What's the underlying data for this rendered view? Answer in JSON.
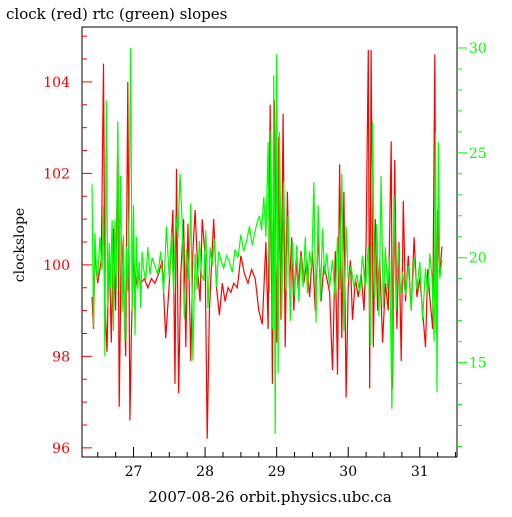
{
  "chart_data": {
    "type": "line",
    "title": "clock (red) rtc (green) slopes",
    "ylabel": "clockslope",
    "caption": "2007-08-26 orbit.physics.ubc.ca",
    "x_range": [
      26.28,
      31.52
    ],
    "x_ticks": [
      27,
      28,
      29,
      30,
      31
    ],
    "x_tick_labels": [
      "27",
      "28",
      "29",
      "30",
      "31"
    ],
    "y_left": {
      "range": [
        95.8,
        105.2
      ],
      "ticks": [
        96,
        98,
        100,
        102,
        104
      ],
      "color": "#ff0000"
    },
    "y_right": {
      "range": [
        10.5,
        31.0
      ],
      "ticks": [
        15,
        20,
        25,
        30
      ],
      "color": "#00ff00"
    },
    "colors": {
      "clock": "#ff0000",
      "rtc": "#00ff00",
      "frame": "#000000",
      "background": "#ffffff"
    },
    "series": [
      {
        "axis": "left",
        "color": "#ff0000",
        "points": [
          [
            26.42,
            99.3
          ],
          [
            26.44,
            98.6
          ],
          [
            26.46,
            100.3
          ],
          [
            26.48,
            99.9
          ],
          [
            26.5,
            99.6
          ],
          [
            26.52,
            99.8
          ],
          [
            26.55,
            100.1
          ],
          [
            26.58,
            104.4
          ],
          [
            26.6,
            99.2
          ],
          [
            26.63,
            98.1
          ],
          [
            26.66,
            100.4
          ],
          [
            26.69,
            98.3
          ],
          [
            26.72,
            100.8
          ],
          [
            26.75,
            99.0
          ],
          [
            26.78,
            102.9
          ],
          [
            26.8,
            96.9
          ],
          [
            26.83,
            100.6
          ],
          [
            26.86,
            99.7
          ],
          [
            26.89,
            98.0
          ],
          [
            26.92,
            104.0
          ],
          [
            26.95,
            96.6
          ],
          [
            26.97,
            98.5
          ],
          [
            27.0,
            100.2
          ],
          [
            27.03,
            99.5
          ],
          [
            27.06,
            99.8
          ],
          [
            27.1,
            99.6
          ],
          [
            27.15,
            99.7
          ],
          [
            27.2,
            99.5
          ],
          [
            27.25,
            99.7
          ],
          [
            27.3,
            99.6
          ],
          [
            27.35,
            99.8
          ],
          [
            27.4,
            100.1
          ],
          [
            27.45,
            98.4
          ],
          [
            27.5,
            99.6
          ],
          [
            27.55,
            101.2
          ],
          [
            27.58,
            97.4
          ],
          [
            27.6,
            102.1
          ],
          [
            27.63,
            97.2
          ],
          [
            27.66,
            99.8
          ],
          [
            27.7,
            101.0
          ],
          [
            27.73,
            98.2
          ],
          [
            27.76,
            100.9
          ],
          [
            27.8,
            97.9
          ],
          [
            27.83,
            100.3
          ],
          [
            27.86,
            101.2
          ],
          [
            27.9,
            99.8
          ],
          [
            27.93,
            99.2
          ],
          [
            27.96,
            101.0
          ],
          [
            28.0,
            100.2
          ],
          [
            28.03,
            96.2
          ],
          [
            28.06,
            99.0
          ],
          [
            28.09,
            100.0
          ],
          [
            28.12,
            101.0
          ],
          [
            28.16,
            99.5
          ],
          [
            28.2,
            98.9
          ],
          [
            28.24,
            99.6
          ],
          [
            28.28,
            99.2
          ],
          [
            28.32,
            99.5
          ],
          [
            28.36,
            99.4
          ],
          [
            28.4,
            99.6
          ],
          [
            28.45,
            99.5
          ],
          [
            28.5,
            100.2
          ],
          [
            28.55,
            99.8
          ],
          [
            28.6,
            99.6
          ],
          [
            28.65,
            99.9
          ],
          [
            28.7,
            99.7
          ],
          [
            28.75,
            99.0
          ],
          [
            28.8,
            98.7
          ],
          [
            28.85,
            100.5
          ],
          [
            28.88,
            98.6
          ],
          [
            28.91,
            103.5
          ],
          [
            28.94,
            97.4
          ],
          [
            28.97,
            103.6
          ],
          [
            29.0,
            98.3
          ],
          [
            29.03,
            102.8
          ],
          [
            29.06,
            98.8
          ],
          [
            29.09,
            103.3
          ],
          [
            29.12,
            98.2
          ],
          [
            29.15,
            101.6
          ],
          [
            29.18,
            99.5
          ],
          [
            29.21,
            100.6
          ],
          [
            29.24,
            99.0
          ],
          [
            29.27,
            100.1
          ],
          [
            29.3,
            99.5
          ],
          [
            29.34,
            100.3
          ],
          [
            29.38,
            99.6
          ],
          [
            29.42,
            100.1
          ],
          [
            29.46,
            99.3
          ],
          [
            29.5,
            100.3
          ],
          [
            29.54,
            99.0
          ],
          [
            29.58,
            100.6
          ],
          [
            29.62,
            99.2
          ],
          [
            29.66,
            100.0
          ],
          [
            29.7,
            99.7
          ],
          [
            29.74,
            99.4
          ],
          [
            29.78,
            97.7
          ],
          [
            29.82,
            100.3
          ],
          [
            29.85,
            97.6
          ],
          [
            29.88,
            102.2
          ],
          [
            29.91,
            98.4
          ],
          [
            29.94,
            101.6
          ],
          [
            29.97,
            97.1
          ],
          [
            30.0,
            99.5
          ],
          [
            30.03,
            100.1
          ],
          [
            30.06,
            98.8
          ],
          [
            30.1,
            99.7
          ],
          [
            30.14,
            99.3
          ],
          [
            30.18,
            99.8
          ],
          [
            30.22,
            99.0
          ],
          [
            30.25,
            100.5
          ],
          [
            30.28,
            104.7
          ],
          [
            30.3,
            97.3
          ],
          [
            30.32,
            104.7
          ],
          [
            30.35,
            98.2
          ],
          [
            30.38,
            101.0
          ],
          [
            30.41,
            99.0
          ],
          [
            30.44,
            100.1
          ],
          [
            30.48,
            98.3
          ],
          [
            30.52,
            99.6
          ],
          [
            30.56,
            99.0
          ],
          [
            30.6,
            102.7
          ],
          [
            30.62,
            97.3
          ],
          [
            30.65,
            102.3
          ],
          [
            30.68,
            98.6
          ],
          [
            30.71,
            100.5
          ],
          [
            30.74,
            97.9
          ],
          [
            30.77,
            101.4
          ],
          [
            30.8,
            99.2
          ],
          [
            30.84,
            100.2
          ],
          [
            30.88,
            99.0
          ],
          [
            30.92,
            100.6
          ],
          [
            30.96,
            99.3
          ],
          [
            31.0,
            99.7
          ],
          [
            31.04,
            99.0
          ],
          [
            31.08,
            98.2
          ],
          [
            31.11,
            99.9
          ],
          [
            31.14,
            99.3
          ],
          [
            31.18,
            98.6
          ],
          [
            31.21,
            104.6
          ],
          [
            31.23,
            98.5
          ],
          [
            31.25,
            101.2
          ],
          [
            31.28,
            99.8
          ],
          [
            31.31,
            100.4
          ]
        ]
      },
      {
        "axis": "right",
        "color": "#00ff00",
        "points": [
          [
            26.42,
            23.5
          ],
          [
            26.44,
            16.7
          ],
          [
            26.46,
            21.2
          ],
          [
            26.48,
            19.5
          ],
          [
            26.5,
            19.0
          ],
          [
            26.53,
            21.0
          ],
          [
            26.56,
            19.4
          ],
          [
            26.58,
            22.5
          ],
          [
            26.6,
            15.3
          ],
          [
            26.62,
            27.5
          ],
          [
            26.64,
            17.6
          ],
          [
            26.66,
            20.7
          ],
          [
            26.68,
            18.6
          ],
          [
            26.7,
            21.8
          ],
          [
            26.72,
            16.5
          ],
          [
            26.74,
            21.8
          ],
          [
            26.76,
            18.5
          ],
          [
            26.78,
            26.5
          ],
          [
            26.8,
            19.3
          ],
          [
            26.82,
            23.9
          ],
          [
            26.84,
            17.4
          ],
          [
            26.86,
            21.1
          ],
          [
            26.88,
            16.0
          ],
          [
            26.9,
            20.5
          ],
          [
            26.92,
            18.4
          ],
          [
            26.94,
            22.3
          ],
          [
            26.96,
            30.0
          ],
          [
            26.98,
            17.5
          ],
          [
            27.0,
            22.5
          ],
          [
            27.02,
            16.3
          ],
          [
            27.04,
            21.0
          ],
          [
            27.06,
            18.5
          ],
          [
            27.08,
            19.8
          ],
          [
            27.1,
            17.6
          ],
          [
            27.12,
            20.3
          ],
          [
            27.14,
            19.5
          ],
          [
            27.17,
            18.9
          ],
          [
            27.2,
            20.5
          ],
          [
            27.23,
            19.2
          ],
          [
            27.26,
            20.0
          ],
          [
            27.3,
            19.6
          ],
          [
            27.34,
            19.2
          ],
          [
            27.38,
            20.3
          ],
          [
            27.42,
            18.3
          ],
          [
            27.46,
            21.5
          ],
          [
            27.5,
            19.0
          ],
          [
            27.53,
            21.2
          ],
          [
            27.56,
            18.3
          ],
          [
            27.59,
            22.0
          ],
          [
            27.62,
            20.9
          ],
          [
            27.65,
            24.0
          ],
          [
            27.68,
            21.7
          ],
          [
            27.71,
            17.1
          ],
          [
            27.74,
            20.4
          ],
          [
            27.77,
            19.0
          ],
          [
            27.8,
            22.6
          ],
          [
            27.83,
            15.1
          ],
          [
            27.86,
            20.2
          ],
          [
            27.89,
            18.5
          ],
          [
            27.92,
            20.8
          ],
          [
            27.95,
            19.2
          ],
          [
            27.98,
            18.9
          ],
          [
            28.01,
            21.3
          ],
          [
            28.04,
            17.6
          ],
          [
            28.07,
            20.5
          ],
          [
            28.1,
            19.6
          ],
          [
            28.13,
            20.9
          ],
          [
            28.16,
            18.6
          ],
          [
            28.19,
            20.3
          ],
          [
            28.22,
            19.9
          ],
          [
            28.26,
            19.5
          ],
          [
            28.3,
            20.1
          ],
          [
            28.34,
            19.8
          ],
          [
            28.38,
            19.3
          ],
          [
            28.42,
            20.4
          ],
          [
            28.46,
            20.0
          ],
          [
            28.5,
            21.1
          ],
          [
            28.54,
            20.3
          ],
          [
            28.58,
            20.8
          ],
          [
            28.62,
            21.5
          ],
          [
            28.66,
            20.6
          ],
          [
            28.7,
            21.3
          ],
          [
            28.73,
            21.7
          ],
          [
            28.76,
            22.0
          ],
          [
            28.79,
            21.3
          ],
          [
            28.82,
            22.9
          ],
          [
            28.85,
            21.0
          ],
          [
            28.88,
            25.5
          ],
          [
            28.9,
            18.3
          ],
          [
            28.92,
            26.0
          ],
          [
            28.94,
            16.6
          ],
          [
            28.96,
            28.7
          ],
          [
            28.98,
            11.6
          ],
          [
            29.0,
            29.7
          ],
          [
            29.02,
            14.5
          ],
          [
            29.04,
            26.0
          ],
          [
            29.07,
            17.2
          ],
          [
            29.1,
            23.6
          ],
          [
            29.13,
            18.5
          ],
          [
            29.16,
            22.0
          ],
          [
            29.19,
            17.0
          ],
          [
            29.22,
            20.8
          ],
          [
            29.25,
            18.2
          ],
          [
            29.28,
            20.6
          ],
          [
            29.31,
            17.9
          ],
          [
            29.34,
            20.1
          ],
          [
            29.37,
            18.6
          ],
          [
            29.4,
            21.0
          ],
          [
            29.43,
            18.3
          ],
          [
            29.46,
            20.3
          ],
          [
            29.49,
            19.5
          ],
          [
            29.52,
            23.6
          ],
          [
            29.55,
            16.9
          ],
          [
            29.58,
            22.5
          ],
          [
            29.61,
            18.0
          ],
          [
            29.64,
            21.4
          ],
          [
            29.67,
            19.2
          ],
          [
            29.7,
            20.2
          ],
          [
            29.74,
            18.6
          ],
          [
            29.78,
            19.9
          ],
          [
            29.82,
            18.0
          ],
          [
            29.85,
            21.0
          ],
          [
            29.88,
            18.5
          ],
          [
            29.91,
            24.0
          ],
          [
            29.94,
            16.5
          ],
          [
            29.97,
            21.5
          ],
          [
            30.0,
            19.0
          ],
          [
            30.04,
            19.6
          ],
          [
            30.08,
            18.6
          ],
          [
            30.12,
            19.2
          ],
          [
            30.16,
            18.3
          ],
          [
            30.2,
            20.1
          ],
          [
            30.24,
            18.5
          ],
          [
            30.28,
            20.6
          ],
          [
            30.31,
            15.8
          ],
          [
            30.34,
            26.5
          ],
          [
            30.37,
            18.0
          ],
          [
            30.4,
            21.6
          ],
          [
            30.43,
            17.2
          ],
          [
            30.46,
            23.9
          ],
          [
            30.49,
            17.6
          ],
          [
            30.52,
            20.5
          ],
          [
            30.55,
            18.5
          ],
          [
            30.58,
            20.0
          ],
          [
            30.61,
            12.8
          ],
          [
            30.64,
            23.0
          ],
          [
            30.67,
            17.5
          ],
          [
            30.7,
            20.5
          ],
          [
            30.73,
            18.3
          ],
          [
            30.76,
            19.3
          ],
          [
            30.8,
            18.2
          ],
          [
            30.84,
            19.6
          ],
          [
            30.88,
            17.5
          ],
          [
            30.92,
            20.0
          ],
          [
            30.96,
            18.5
          ],
          [
            31.0,
            19.8
          ],
          [
            31.04,
            17.0
          ],
          [
            31.08,
            19.5
          ],
          [
            31.11,
            18.2
          ],
          [
            31.14,
            20.2
          ],
          [
            31.17,
            19.1
          ],
          [
            31.2,
            16.0
          ],
          [
            31.22,
            26.0
          ],
          [
            31.24,
            13.6
          ],
          [
            31.26,
            25.5
          ],
          [
            31.28,
            19.0
          ],
          [
            31.31,
            19.9
          ]
        ]
      }
    ]
  }
}
